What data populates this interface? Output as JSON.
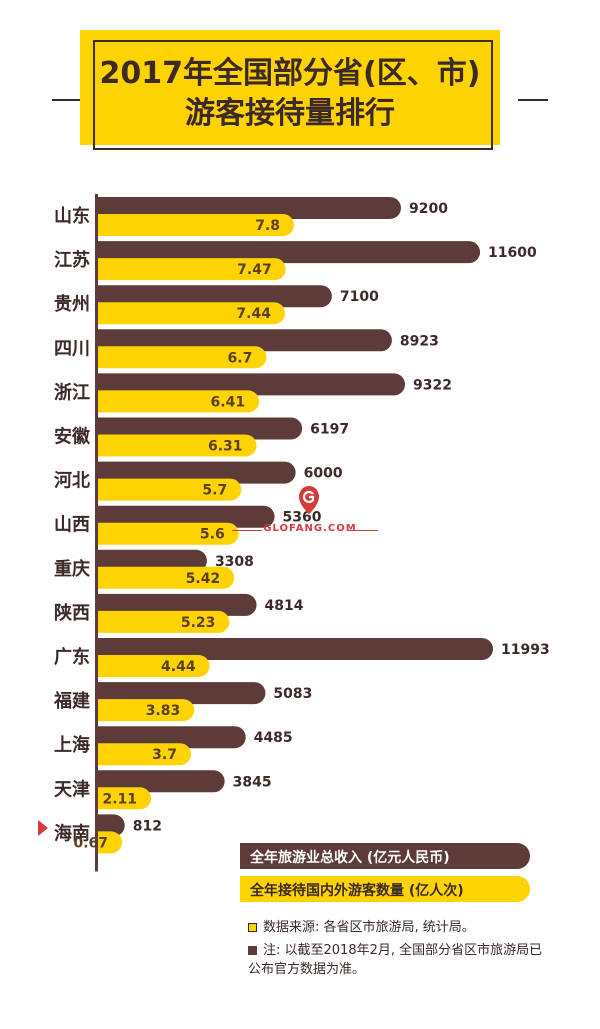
{
  "title": {
    "line1": "2017年全国部分省(区、市)",
    "line2": "游客接待量排行"
  },
  "colors": {
    "revenue": "#5c3b38",
    "visitors": "#ffd300",
    "accent": "#d43b3b"
  },
  "chart_data": {
    "type": "bar",
    "orientation": "horizontal",
    "categories": [
      "山东",
      "江苏",
      "贵州",
      "四川",
      "浙江",
      "安徽",
      "河北",
      "山西",
      "重庆",
      "陕西",
      "广东",
      "福建",
      "上海",
      "天津",
      "海南"
    ],
    "series": [
      {
        "name": "全年旅游业总收入 (亿元人民币)",
        "values": [
          9200,
          11600,
          7100,
          8923,
          9322,
          6197,
          6000,
          5360,
          3308,
          4814,
          11993,
          5083,
          4485,
          3845,
          812
        ],
        "labels": [
          "9200",
          "11600",
          "7100",
          "8923",
          "9322",
          "6197",
          "6000",
          "5360",
          "3308",
          "4814",
          "11993",
          "5083",
          "4485",
          "3845",
          "812"
        ]
      },
      {
        "name": "全年接待国内外游客数量 (亿人次)",
        "values": [
          7.8,
          7.47,
          7.44,
          6.7,
          6.41,
          6.31,
          5.7,
          5.6,
          5.42,
          5.23,
          4.44,
          3.83,
          3.7,
          2.11,
          0.67
        ],
        "labels": [
          "7.8",
          "7.47",
          "7.44",
          "6.7",
          "6.41",
          "6.31",
          "5.7",
          "5.6",
          "5.42",
          "5.23",
          "4.44",
          "3.83",
          "3.7",
          "2.11",
          "0.67"
        ]
      }
    ],
    "highlight": "海南"
  },
  "legend": {
    "revenue": "全年旅游业总收入 (亿元人民币)",
    "visitors": "全年接待国内外游客数量 (亿人次)"
  },
  "notes": {
    "source": "数据来源: 各省区市旅游局, 统计局。",
    "note": "注: 以截至2018年2月, 全国部分省区市旅游局已公布官方数据为准。"
  },
  "watermark": "GLOFANG.COM"
}
